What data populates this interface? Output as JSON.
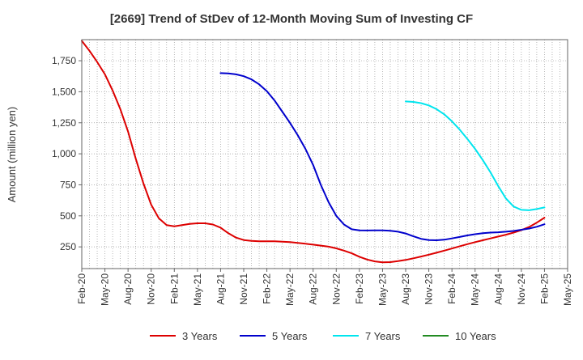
{
  "chart_data": {
    "type": "line",
    "title": "[2669]  Trend of StDev of 12-Month Moving Sum of Investing CF",
    "xlabel": "",
    "ylabel": "Amount (million yen)",
    "x_ticks": [
      "Feb-20",
      "May-20",
      "Aug-20",
      "Nov-20",
      "Feb-21",
      "May-21",
      "Aug-21",
      "Nov-21",
      "Feb-22",
      "May-22",
      "Aug-22",
      "Nov-22",
      "Feb-23",
      "May-23",
      "Aug-23",
      "Nov-23",
      "Feb-24",
      "May-24",
      "Aug-24",
      "Nov-24",
      "Feb-25",
      "May-25"
    ],
    "y_ticks": [
      250,
      500,
      750,
      1000,
      1250,
      1500,
      1750
    ],
    "y_tick_labels": [
      "250",
      "500",
      "750",
      "1,000",
      "1,250",
      "1,500",
      "1,750"
    ],
    "ylim": [
      75,
      1920
    ],
    "grid": true,
    "legend_position": "bottom",
    "series": [
      {
        "name": "3 Years",
        "color": "#dd0000",
        "points": [
          [
            "Feb-20",
            1910
          ],
          [
            "Mar-20",
            1830
          ],
          [
            "Apr-20",
            1740
          ],
          [
            "May-20",
            1640
          ],
          [
            "Jun-20",
            1510
          ],
          [
            "Jul-20",
            1360
          ],
          [
            "Aug-20",
            1180
          ],
          [
            "Sep-20",
            960
          ],
          [
            "Oct-20",
            760
          ],
          [
            "Nov-20",
            590
          ],
          [
            "Dec-20",
            480
          ],
          [
            "Jan-21",
            425
          ],
          [
            "Feb-21",
            415
          ],
          [
            "Mar-21",
            425
          ],
          [
            "Apr-21",
            435
          ],
          [
            "May-21",
            440
          ],
          [
            "Jun-21",
            440
          ],
          [
            "Jul-21",
            430
          ],
          [
            "Aug-21",
            405
          ],
          [
            "Sep-21",
            360
          ],
          [
            "Oct-21",
            325
          ],
          [
            "Nov-21",
            305
          ],
          [
            "Dec-21",
            298
          ],
          [
            "Jan-22",
            295
          ],
          [
            "Feb-22",
            295
          ],
          [
            "Mar-22",
            295
          ],
          [
            "Apr-22",
            292
          ],
          [
            "May-22",
            288
          ],
          [
            "Jun-22",
            282
          ],
          [
            "Jul-22",
            275
          ],
          [
            "Aug-22",
            268
          ],
          [
            "Sep-22",
            260
          ],
          [
            "Oct-22",
            252
          ],
          [
            "Nov-22",
            238
          ],
          [
            "Dec-22",
            220
          ],
          [
            "Jan-23",
            198
          ],
          [
            "Feb-23",
            170
          ],
          [
            "Mar-23",
            148
          ],
          [
            "Apr-23",
            133
          ],
          [
            "May-23",
            125
          ],
          [
            "Jun-23",
            127
          ],
          [
            "Jul-23",
            135
          ],
          [
            "Aug-23",
            145
          ],
          [
            "Sep-23",
            158
          ],
          [
            "Oct-23",
            172
          ],
          [
            "Nov-23",
            187
          ],
          [
            "Dec-23",
            203
          ],
          [
            "Jan-24",
            220
          ],
          [
            "Feb-24",
            237
          ],
          [
            "Mar-24",
            255
          ],
          [
            "Apr-24",
            272
          ],
          [
            "May-24",
            288
          ],
          [
            "Jun-24",
            303
          ],
          [
            "Jul-24",
            318
          ],
          [
            "Aug-24",
            333
          ],
          [
            "Sep-24",
            348
          ],
          [
            "Oct-24",
            365
          ],
          [
            "Nov-24",
            385
          ],
          [
            "Dec-24",
            410
          ],
          [
            "Jan-25",
            445
          ],
          [
            "Feb-25",
            485
          ]
        ]
      },
      {
        "name": "5 Years",
        "color": "#0000cc",
        "points": [
          [
            "Aug-21",
            1650
          ],
          [
            "Sep-21",
            1648
          ],
          [
            "Oct-21",
            1640
          ],
          [
            "Nov-21",
            1625
          ],
          [
            "Dec-21",
            1600
          ],
          [
            "Jan-22",
            1560
          ],
          [
            "Feb-22",
            1505
          ],
          [
            "Mar-22",
            1430
          ],
          [
            "Apr-22",
            1340
          ],
          [
            "May-22",
            1250
          ],
          [
            "Jun-22",
            1150
          ],
          [
            "Jul-22",
            1040
          ],
          [
            "Aug-22",
            910
          ],
          [
            "Sep-22",
            750
          ],
          [
            "Oct-22",
            610
          ],
          [
            "Nov-22",
            500
          ],
          [
            "Dec-22",
            430
          ],
          [
            "Jan-23",
            392
          ],
          [
            "Feb-23",
            383
          ],
          [
            "Mar-23",
            382
          ],
          [
            "Apr-23",
            383
          ],
          [
            "May-23",
            383
          ],
          [
            "Jun-23",
            380
          ],
          [
            "Jul-23",
            372
          ],
          [
            "Aug-23",
            358
          ],
          [
            "Sep-23",
            335
          ],
          [
            "Oct-23",
            315
          ],
          [
            "Nov-23",
            305
          ],
          [
            "Dec-23",
            303
          ],
          [
            "Jan-24",
            308
          ],
          [
            "Feb-24",
            318
          ],
          [
            "Mar-24",
            330
          ],
          [
            "Apr-24",
            342
          ],
          [
            "May-24",
            352
          ],
          [
            "Jun-24",
            360
          ],
          [
            "Jul-24",
            365
          ],
          [
            "Aug-24",
            368
          ],
          [
            "Sep-24",
            372
          ],
          [
            "Oct-24",
            378
          ],
          [
            "Nov-24",
            388
          ],
          [
            "Dec-24",
            398
          ],
          [
            "Jan-25",
            412
          ],
          [
            "Feb-25",
            432
          ]
        ]
      },
      {
        "name": "7 Years",
        "color": "#00e5ee",
        "points": [
          [
            "Aug-23",
            1422
          ],
          [
            "Sep-23",
            1418
          ],
          [
            "Oct-23",
            1408
          ],
          [
            "Nov-23",
            1390
          ],
          [
            "Dec-23",
            1360
          ],
          [
            "Jan-24",
            1318
          ],
          [
            "Feb-24",
            1262
          ],
          [
            "Mar-24",
            1195
          ],
          [
            "Apr-24",
            1120
          ],
          [
            "May-24",
            1040
          ],
          [
            "Jun-24",
            950
          ],
          [
            "Jul-24",
            850
          ],
          [
            "Aug-24",
            740
          ],
          [
            "Sep-24",
            640
          ],
          [
            "Oct-24",
            575
          ],
          [
            "Nov-24",
            548
          ],
          [
            "Dec-24",
            545
          ],
          [
            "Jan-25",
            555
          ],
          [
            "Feb-25",
            568
          ]
        ]
      },
      {
        "name": "10 Years",
        "color": "#228b22",
        "points": []
      }
    ]
  }
}
